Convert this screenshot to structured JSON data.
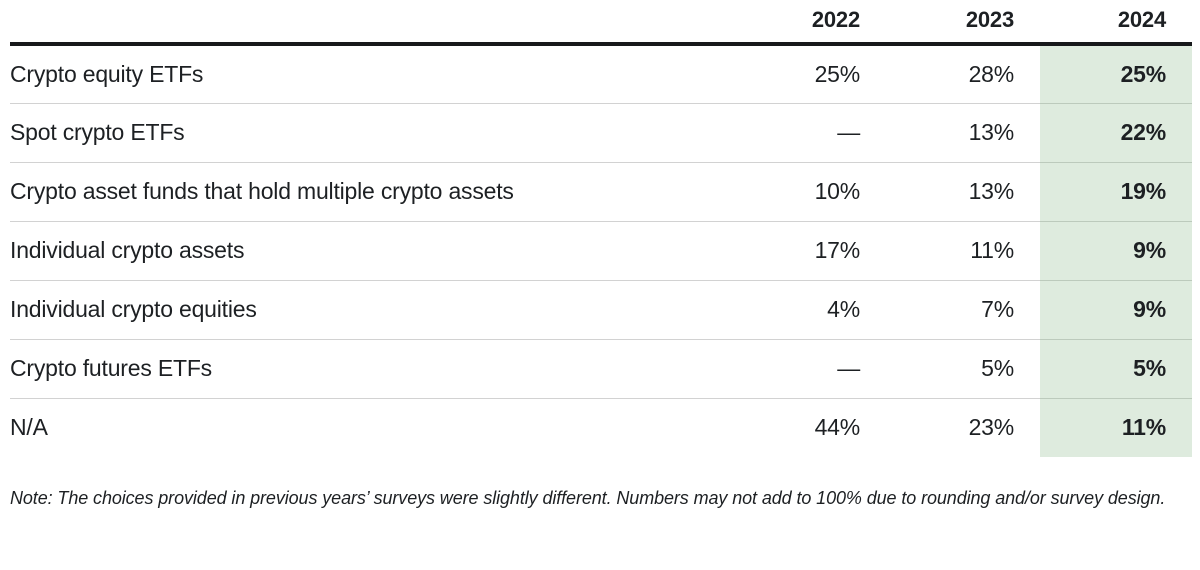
{
  "table": {
    "columns": [
      "2022",
      "2023",
      "2024"
    ],
    "highlight_column": "2024",
    "rows": [
      {
        "label": "Crypto equity ETFs",
        "values": [
          "25%",
          "28%",
          "25%"
        ]
      },
      {
        "label": "Spot crypto ETFs",
        "values": [
          "—",
          "13%",
          "22%"
        ]
      },
      {
        "label": "Crypto asset funds that hold multiple crypto assets",
        "values": [
          "10%",
          "13%",
          "19%"
        ]
      },
      {
        "label": "Individual crypto assets",
        "values": [
          "17%",
          "11%",
          "9%"
        ]
      },
      {
        "label": "Individual crypto equities",
        "values": [
          "4%",
          "7%",
          "9%"
        ]
      },
      {
        "label": "Crypto futures ETFs",
        "values": [
          "—",
          "5%",
          "5%"
        ]
      },
      {
        "label": "N/A",
        "values": [
          "44%",
          "23%",
          "11%"
        ]
      }
    ]
  },
  "note": "Note: The choices provided in previous years’ surveys were slightly different. Numbers may not add to 100% due to rounding and/or survey design.",
  "colors": {
    "highlight_bg": "#deebde",
    "header_rule": "#17191b",
    "row_divider": "#d2d2d2",
    "highlight_divider": "#bccabc",
    "text": "#1d2023"
  },
  "chart_data": {
    "type": "table",
    "title": "",
    "categories": [
      "Crypto equity ETFs",
      "Spot crypto ETFs",
      "Crypto asset funds that hold multiple crypto assets",
      "Individual crypto assets",
      "Individual crypto equities",
      "Crypto futures ETFs",
      "N/A"
    ],
    "series": [
      {
        "name": "2022",
        "values": [
          25,
          null,
          10,
          17,
          4,
          null,
          44
        ]
      },
      {
        "name": "2023",
        "values": [
          28,
          13,
          13,
          11,
          7,
          5,
          23
        ]
      },
      {
        "name": "2024",
        "values": [
          25,
          22,
          19,
          9,
          9,
          5,
          11
        ]
      }
    ],
    "unit": "%",
    "missing_value_glyph": "—",
    "highlighted_series": "2024",
    "annotations": [
      "Note: The choices provided in previous years’ surveys were slightly different. Numbers may not add to 100% due to rounding and/or survey design."
    ],
    "layout_hints": {
      "value_alignment": "right",
      "highlight_style": "light-green column, bold values",
      "grid": "horizontal row dividers only"
    }
  }
}
